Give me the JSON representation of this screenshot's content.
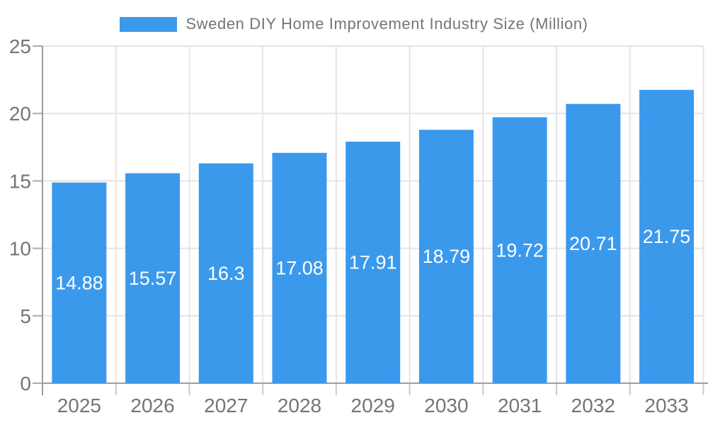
{
  "chart_data": {
    "type": "bar",
    "title": "Sweden DIY Home Improvement Industry Size (Million)",
    "series_name": "Sweden DIY Home Improvement Industry Size (Million)",
    "categories": [
      "2025",
      "2026",
      "2027",
      "2028",
      "2029",
      "2030",
      "2031",
      "2032",
      "2033"
    ],
    "values": [
      14.88,
      15.57,
      16.3,
      17.08,
      17.91,
      18.79,
      19.72,
      20.71,
      21.75
    ],
    "xlabel": "",
    "ylabel": "",
    "ylim": [
      0,
      25
    ],
    "yticks": [
      0,
      5,
      10,
      15,
      20,
      25
    ],
    "grid": true,
    "legend_position": "top-center",
    "value_label_position": "inside-center",
    "colors": {
      "bar": "#3B99EC",
      "value_label": "#FFFFFF",
      "tick_label": "#757575",
      "title": "#757575",
      "gridline": "#E4E4E4",
      "axis_line": "#9E9E9E",
      "x_tick_mark": "#CBCBCB",
      "y_tick_mark": "#ABABAB",
      "background": "#FFFFFF"
    }
  }
}
